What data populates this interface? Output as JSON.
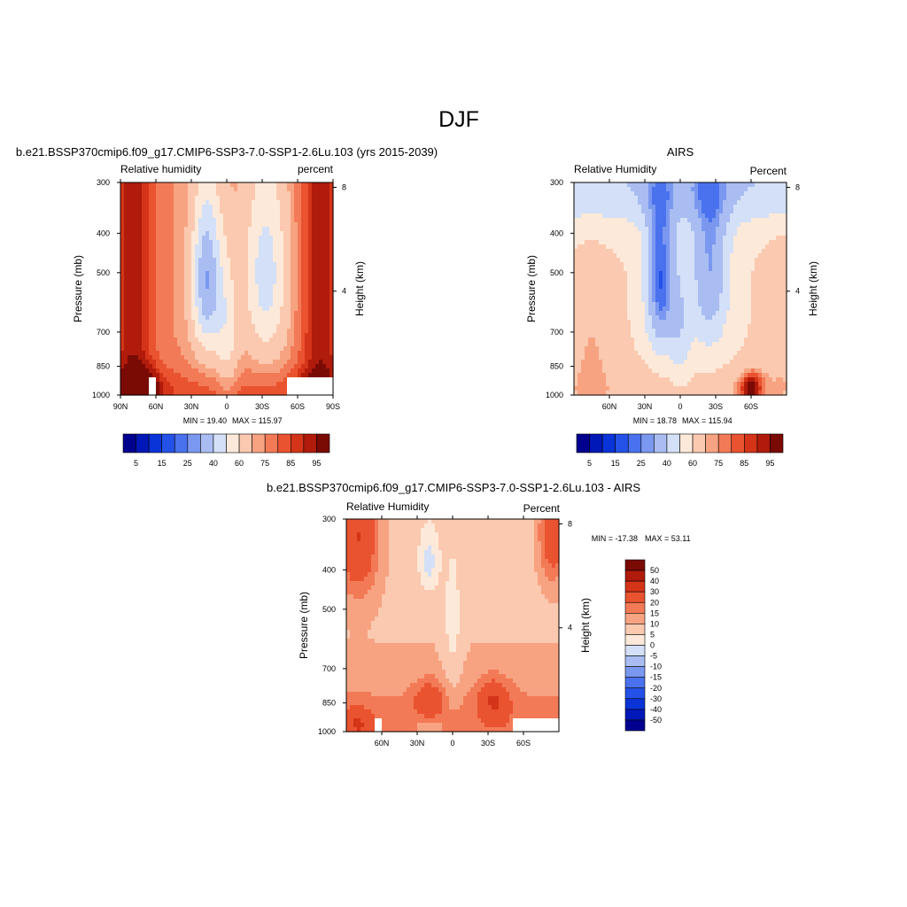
{
  "page_title": "DJF",
  "chart_data": [
    {
      "id": "model",
      "type": "heatmap",
      "title": "b.e21.BSSP370cmip6.f09_g17.CMIP6-SSP3-7.0-SSP1-2.6Lu.103 (yrs 2015-2039)",
      "left_label": "Relative humidity",
      "right_label": "percent",
      "ylabel": "Pressure (mb)",
      "y2label": "Height (km)",
      "y_ticks": [
        "300",
        "400",
        "500",
        "700",
        "850",
        "1000"
      ],
      "y2_ticks": [
        "8",
        "4"
      ],
      "x_ticks": [
        "90N",
        "60N",
        "30N",
        "0",
        "30S",
        "60S",
        "90S"
      ],
      "min_label": "MIN =  19.40",
      "max_label": "MAX = 115.97",
      "colorbar_ticks": [
        "5",
        "15",
        "25",
        "40",
        "60",
        "75",
        "85",
        "95"
      ],
      "xlim": [
        90,
        -90
      ],
      "ylim": [
        1000,
        300
      ],
      "features": [
        {
          "lat": 17,
          "p": 520,
          "lat_width": 7,
          "p_width": 140,
          "value": 22
        },
        {
          "lat": -33,
          "p": 500,
          "lat_width": 12,
          "p_width": 180,
          "value": 35
        },
        {
          "lat": 75,
          "p": 950,
          "lat_width": 20,
          "p_width": 80,
          "value": 98
        }
      ]
    },
    {
      "id": "obs",
      "type": "heatmap",
      "title": "AIRS",
      "left_label": "Relative Humidity",
      "right_label": "Percent",
      "ylabel": "Pressure (mb)",
      "y2label": "Height (km)",
      "y_ticks": [
        "300",
        "400",
        "500",
        "700",
        "850",
        "1000"
      ],
      "y2_ticks": [
        "8",
        "4"
      ],
      "x_ticks": [
        "60N",
        "30N",
        "0",
        "30S",
        "60S"
      ],
      "min_label": "MIN =  18.78",
      "max_label": "MAX = 115.94",
      "colorbar_ticks": [
        "5",
        "15",
        "25",
        "40",
        "60",
        "75",
        "85",
        "95"
      ],
      "xlim": [
        90,
        -90
      ],
      "ylim": [
        1000,
        300
      ],
      "features": [
        {
          "lat": 17,
          "p": 500,
          "lat_width": 7,
          "p_width": 130,
          "value": 20
        },
        {
          "lat": -25,
          "p": 480,
          "lat_width": 10,
          "p_width": 160,
          "value": 30
        },
        {
          "lat": -60,
          "p": 950,
          "lat_width": 8,
          "p_width": 70,
          "value": 98
        }
      ]
    },
    {
      "id": "diff",
      "type": "heatmap",
      "title": "b.e21.BSSP370cmip6.f09_g17.CMIP6-SSP3-7.0-SSP1-2.6Lu.103 - AIRS",
      "left_label": "Relative Humidity",
      "right_label": "Percent",
      "ylabel": "Pressure (mb)",
      "y2label": "Height (km)",
      "y_ticks": [
        "300",
        "400",
        "500",
        "700",
        "850",
        "1000"
      ],
      "y2_ticks": [
        "8",
        "4"
      ],
      "x_ticks": [
        "60N",
        "30N",
        "0",
        "30S",
        "60S"
      ],
      "min_label": "MIN = -17.38",
      "max_label": "MAX =  53.11",
      "colorbar_ticks": [
        "50",
        "40",
        "30",
        "20",
        "15",
        "10",
        "5",
        "0",
        "-5",
        "-10",
        "-15",
        "-20",
        "-30",
        "-40",
        "-50"
      ],
      "xlim": [
        90,
        -90
      ],
      "ylim": [
        1000,
        300
      ],
      "features": [
        {
          "lat": 80,
          "p": 330,
          "lat_width": 12,
          "p_width": 60,
          "value": 30
        },
        {
          "lat": -35,
          "p": 840,
          "lat_width": 10,
          "p_width": 60,
          "value": 22
        },
        {
          "lat": 20,
          "p": 380,
          "lat_width": 6,
          "p_width": 60,
          "value": -5
        }
      ]
    }
  ],
  "colors": {
    "sequential": [
      "#00008f",
      "#0018b8",
      "#0a34d8",
      "#2452e8",
      "#4a72ee",
      "#7a98f0",
      "#a9bdf2",
      "#d3e0f7",
      "#fde9d9",
      "#fbc9af",
      "#f7a382",
      "#f37a56",
      "#ea5330",
      "#d43418",
      "#b01b0b",
      "#7a0a04"
    ],
    "diverging": [
      "#7a0a04",
      "#b01b0b",
      "#d43418",
      "#ea5330",
      "#f37a56",
      "#f7a382",
      "#fbc9af",
      "#fde9d9",
      "#d3e0f7",
      "#a9bdf2",
      "#7a98f0",
      "#4a72ee",
      "#2452e8",
      "#0a34d8",
      "#0018b8",
      "#00008f"
    ],
    "missing": "#ffffff"
  }
}
